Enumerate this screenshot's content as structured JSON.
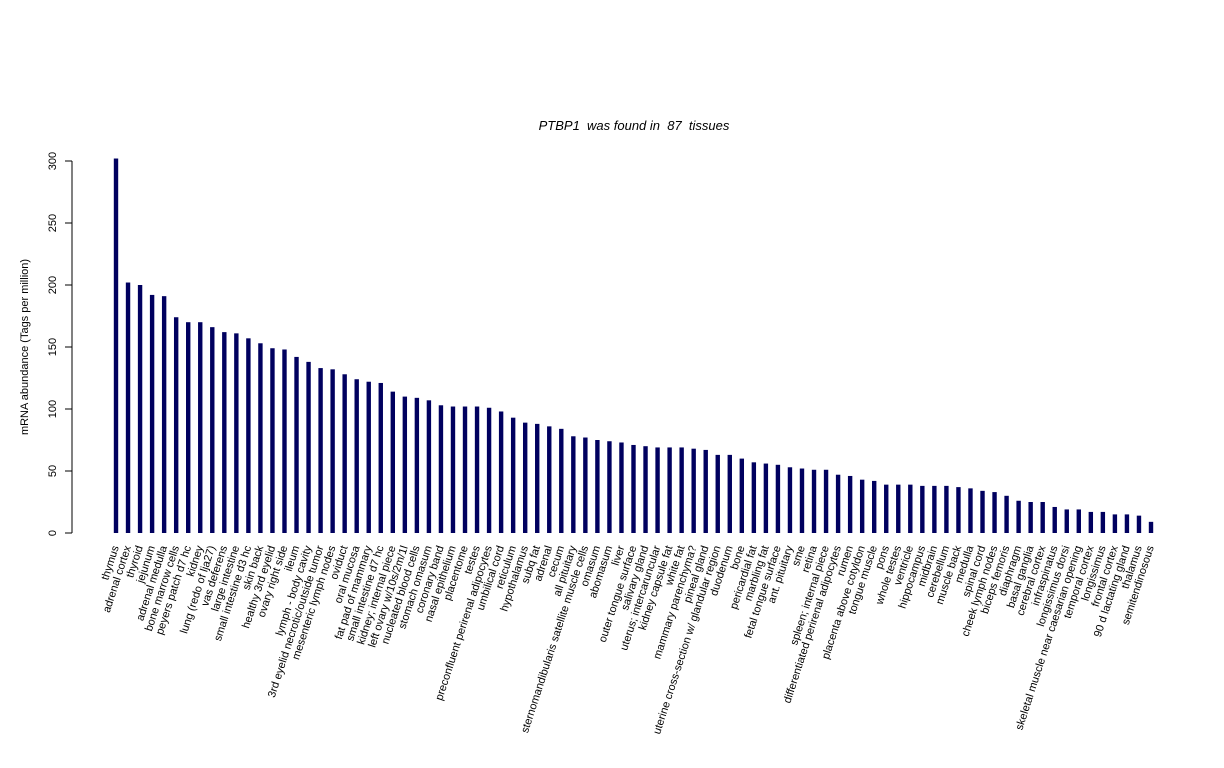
{
  "chart_data": {
    "type": "bar",
    "title": "PTBP1  was found in  87  tissues",
    "y_label": "mRNA abundance (Tags per million)",
    "color": "#00005f",
    "ylim": [
      0,
      300
    ],
    "yticks": [
      0,
      50,
      100,
      150,
      200,
      250,
      300
    ],
    "categories": [
      "thymus",
      "adrenal cortex",
      "thyroid",
      "jejunum",
      "adrenal medulla",
      "bone marrow cells",
      "peyers patch d7 hc",
      "kidney",
      "lung (redo of lja27)",
      "vas deferens",
      "large intestine",
      "small intestine d3 hc",
      "skin back",
      "healthy 3rd eyelid",
      "ovary right side",
      "ileum",
      "lymph - body cavity",
      "3rd eyelid necrotic/outside tumor",
      "mesenteric lymph nodes",
      "oviduct",
      "oral mucosa",
      "fat pad of mammary",
      "small intestine d7 hc",
      "kidney; internal piece",
      "left ovary w/10s/2m/1l",
      "nucleated blood cells",
      "stomach omasum",
      "coronary band",
      "nasal epithelium",
      "placentome",
      "testes",
      "preconfluent perirenal adipocytes",
      "umbilical cord",
      "reticulum",
      "hypothalamus",
      "subq fat",
      "adrenal",
      "cecum",
      "all pituitary",
      "sternomandibularis satellite muscle cells",
      "omasum",
      "abomasum",
      "liver",
      "outer tongue surface",
      "salivary gland",
      "uterus; intercaruncular",
      "kidney capsule fat",
      "white fat",
      "mammary parenchyma?",
      "pineal gland",
      "uterine cross-section w/ glandular region",
      "duodenum",
      "bone",
      "pericardial fat",
      "marbling fat",
      "fetal tongue surface",
      "ant. pituitary",
      "sme",
      "retina",
      "spleen; internal piece",
      "differentiated perirenal adipocytes",
      "rumen",
      "placenta above cotyldon",
      "tongue muscle",
      "pons",
      "whole testes",
      "ventricle",
      "hippocampus",
      "midbrain",
      "cerebellum",
      "muscle back",
      "medulla",
      "spinal cord",
      "cheek lymph nodes",
      "biceps femoris",
      "diaphragm",
      "basal ganglia",
      "cerebral cortex",
      "infraspinatus",
      "longissimus dorsi",
      "skeletal muscle near caesarian opening",
      "temporal cortex",
      "longissimus",
      "frontal cortex",
      "90 d lactating gland",
      "thalamus",
      "semitendinosous"
    ],
    "values": [
      302,
      202,
      200,
      192,
      191,
      174,
      170,
      170,
      166,
      162,
      161,
      157,
      153,
      149,
      148,
      142,
      138,
      133,
      132,
      128,
      124,
      122,
      121,
      114,
      110,
      109,
      107,
      103,
      102,
      102,
      102,
      101,
      98,
      93,
      89,
      88,
      86,
      84,
      78,
      77,
      75,
      74,
      73,
      71,
      70,
      69,
      69,
      69,
      68,
      67,
      63,
      63,
      60,
      57,
      56,
      55,
      53,
      52,
      51,
      51,
      47,
      46,
      43,
      42,
      39,
      39,
      39,
      38,
      38,
      38,
      37,
      36,
      34,
      33,
      30,
      26,
      25,
      25,
      21,
      19,
      19,
      17,
      17,
      15,
      15,
      14,
      9
    ]
  }
}
